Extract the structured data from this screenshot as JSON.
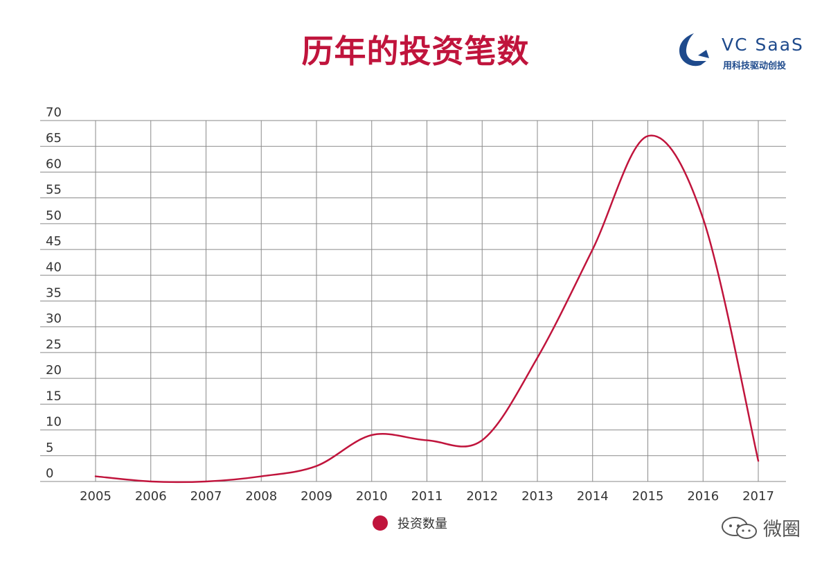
{
  "title": "历年的投资笔数",
  "logo": {
    "name": "VC SaaS",
    "slogan": "用科技驱动创投",
    "color": "#1e4a8c"
  },
  "watermark": {
    "text": "微圈",
    "icon": "wechat-moments-icon"
  },
  "colors": {
    "accent": "#c0143c",
    "grid": "#8a8a8a",
    "text": "#333333"
  },
  "chart_data": {
    "type": "line",
    "title": "历年的投资笔数",
    "x": [
      "2005",
      "2006",
      "2007",
      "2008",
      "2009",
      "2010",
      "2011",
      "2012",
      "2013",
      "2014",
      "2015",
      "2016",
      "2017"
    ],
    "series": [
      {
        "name": "投资数量",
        "values": [
          1,
          0,
          0,
          1,
          3,
          9,
          8,
          8,
          24,
          45,
          67,
          51,
          4
        ]
      }
    ],
    "y_ticks": [
      0,
      5,
      10,
      15,
      20,
      25,
      30,
      35,
      40,
      45,
      50,
      55,
      60,
      65,
      70
    ],
    "ylim": [
      0,
      70
    ],
    "grid": true,
    "smooth": true,
    "legend_position": "bottom-center"
  }
}
